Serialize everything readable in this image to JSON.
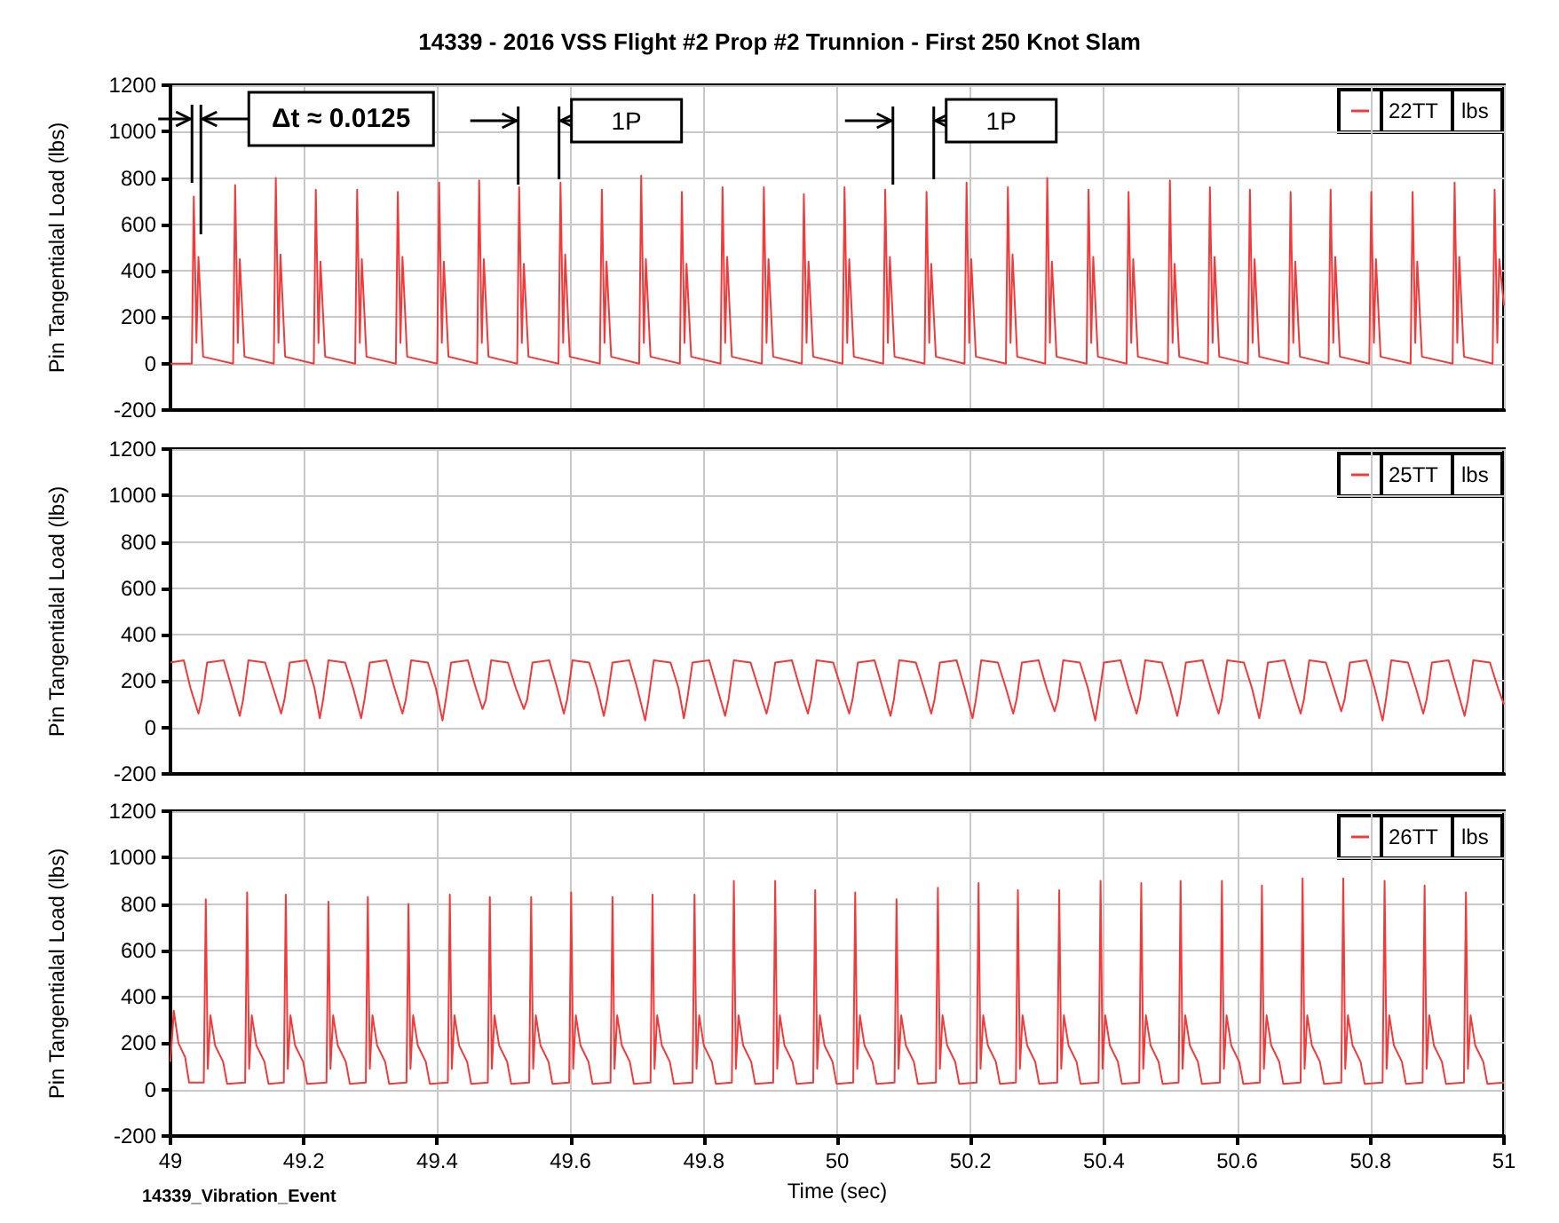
{
  "chart_data": [
    {
      "type": "line",
      "title": "14339 - 2016 VSS Flight #2 Prop #2 Trunnion - First 250 Knot Slam",
      "ylabel": "Pin Tangentialal Load (lbs)",
      "legend_title": "lbs",
      "legend": "top right",
      "grid": true,
      "tick_labels": "y",
      "xlim": [
        49,
        51
      ],
      "xticks": [
        49,
        49.2,
        49.4,
        49.6,
        49.8,
        50,
        50.2,
        50.4,
        50.6,
        50.8,
        51
      ],
      "ylim": [
        -200,
        1200
      ],
      "yticks": [
        -200,
        0,
        200,
        400,
        600,
        800,
        1000,
        1200
      ],
      "annotations": [
        "Δt ≈ 0.0125",
        "1P",
        "1P"
      ],
      "x": [
        49,
        49.032,
        49.035,
        49.039,
        49.042,
        49.049,
        49.094,
        49.097,
        49.101,
        49.104,
        49.111,
        49.155,
        49.158,
        49.162,
        49.165,
        49.172,
        49.215,
        49.218,
        49.222,
        49.225,
        49.232,
        49.277,
        49.28,
        49.284,
        49.287,
        49.294,
        49.338,
        49.341,
        49.345,
        49.348,
        49.355,
        49.4,
        49.403,
        49.407,
        49.41,
        49.417,
        49.46,
        49.463,
        49.467,
        49.47,
        49.477,
        49.52,
        49.523,
        49.527,
        49.53,
        49.537,
        49.582,
        49.585,
        49.589,
        49.592,
        49.599,
        49.644,
        49.647,
        49.651,
        49.654,
        49.661,
        49.703,
        49.706,
        49.71,
        49.713,
        49.72,
        49.764,
        49.767,
        49.771,
        49.774,
        49.781,
        49.825,
        49.828,
        49.832,
        49.835,
        49.842,
        49.887,
        49.89,
        49.894,
        49.897,
        49.904,
        49.947,
        49.95,
        49.954,
        49.957,
        49.964,
        50.008,
        50.011,
        50.015,
        50.018,
        50.025,
        50.069,
        50.072,
        50.076,
        50.079,
        50.086,
        50.131,
        50.134,
        50.138,
        50.141,
        50.148,
        50.191,
        50.194,
        50.198,
        50.201,
        50.208,
        50.253,
        50.256,
        50.26,
        50.263,
        50.27,
        50.312,
        50.315,
        50.319,
        50.322,
        50.329,
        50.374,
        50.377,
        50.381,
        50.384,
        50.391,
        50.434,
        50.437,
        50.441,
        50.444,
        50.451,
        50.496,
        50.499,
        50.503,
        50.506,
        50.513,
        50.556,
        50.559,
        50.563,
        50.566,
        50.573,
        50.616,
        50.619,
        50.623,
        50.626,
        50.633,
        50.677,
        50.68,
        50.684,
        50.687,
        50.694,
        50.737,
        50.74,
        50.744,
        50.747,
        50.754,
        50.798,
        50.801,
        50.805,
        50.808,
        50.815,
        50.86,
        50.863,
        50.867,
        50.87,
        50.877,
        50.923,
        50.926,
        50.93,
        50.933,
        50.94,
        50.983,
        50.986,
        50.99,
        50.993,
        51
      ],
      "series": [
        {
          "name": "22TT",
          "color": "#f23a3a",
          "values": [
            0,
            0,
            720,
            90,
            460,
            30,
            0,
            770,
            90,
            450,
            30,
            0,
            800,
            90,
            470,
            30,
            0,
            750,
            90,
            440,
            30,
            0,
            750,
            90,
            450,
            30,
            0,
            740,
            90,
            460,
            30,
            0,
            780,
            90,
            440,
            30,
            0,
            790,
            90,
            450,
            30,
            0,
            760,
            90,
            430,
            30,
            0,
            780,
            90,
            470,
            30,
            0,
            750,
            90,
            440,
            30,
            0,
            810,
            90,
            450,
            30,
            0,
            740,
            90,
            430,
            30,
            0,
            760,
            90,
            460,
            30,
            0,
            760,
            90,
            450,
            30,
            0,
            730,
            90,
            440,
            30,
            0,
            760,
            90,
            450,
            30,
            0,
            750,
            90,
            460,
            30,
            0,
            740,
            90,
            430,
            30,
            0,
            780,
            90,
            450,
            30,
            0,
            760,
            90,
            470,
            30,
            0,
            800,
            90,
            440,
            30,
            0,
            750,
            90,
            460,
            30,
            0,
            740,
            90,
            450,
            30,
            0,
            790,
            90,
            430,
            30,
            0,
            760,
            90,
            460,
            30,
            0,
            750,
            90,
            450,
            30,
            0,
            740,
            90,
            440,
            30,
            0,
            750,
            90,
            460,
            30,
            0,
            740,
            90,
            450,
            30,
            0,
            740,
            90,
            440,
            30,
            0,
            780,
            90,
            460,
            30,
            0,
            750,
            90,
            450,
            250
          ]
        }
      ]
    },
    {
      "type": "line",
      "ylabel": "Pin Tangentialal Load (lbs)",
      "legend_title": "lbs",
      "legend": "top right",
      "grid": true,
      "tick_labels": "y",
      "xlim": [
        49,
        51
      ],
      "xticks": [
        49,
        49.2,
        49.4,
        49.6,
        49.8,
        50,
        50.2,
        50.4,
        50.6,
        50.8,
        51
      ],
      "ylim": [
        -200,
        1200
      ],
      "yticks": [
        -200,
        0,
        200,
        400,
        600,
        800,
        1000,
        1200
      ],
      "x": [
        49,
        49.02,
        49.03,
        49.042,
        49.047,
        49.055,
        49.08,
        49.092,
        49.104,
        49.109,
        49.117,
        49.142,
        49.154,
        49.166,
        49.171,
        49.179,
        49.204,
        49.216,
        49.224,
        49.229,
        49.237,
        49.262,
        49.274,
        49.286,
        49.291,
        49.299,
        49.324,
        49.336,
        49.348,
        49.353,
        49.361,
        49.386,
        49.398,
        49.408,
        49.413,
        49.421,
        49.446,
        49.458,
        49.468,
        49.473,
        49.481,
        49.506,
        49.518,
        49.53,
        49.535,
        49.543,
        49.568,
        49.58,
        49.59,
        49.595,
        49.603,
        49.628,
        49.64,
        49.65,
        49.655,
        49.663,
        49.688,
        49.7,
        49.712,
        49.717,
        49.725,
        49.75,
        49.762,
        49.77,
        49.775,
        49.783,
        49.808,
        49.82,
        49.832,
        49.837,
        49.845,
        49.87,
        49.882,
        49.894,
        49.899,
        49.907,
        49.932,
        49.944,
        49.956,
        49.961,
        49.969,
        49.994,
        50.006,
        50.018,
        50.023,
        50.031,
        50.056,
        50.068,
        50.08,
        50.085,
        50.093,
        50.118,
        50.13,
        50.141,
        50.146,
        50.154,
        50.179,
        50.191,
        50.203,
        50.208,
        50.216,
        50.241,
        50.253,
        50.264,
        50.269,
        50.277,
        50.302,
        50.314,
        50.326,
        50.331,
        50.339,
        50.364,
        50.376,
        50.387,
        50.392,
        50.4,
        50.425,
        50.437,
        50.449,
        50.454,
        50.462,
        50.487,
        50.499,
        50.51,
        50.515,
        50.523,
        50.548,
        50.56,
        50.572,
        50.577,
        50.585,
        50.61,
        50.622,
        50.633,
        50.638,
        50.646,
        50.671,
        50.683,
        50.695,
        50.7,
        50.708,
        50.733,
        50.745,
        50.756,
        50.761,
        50.769,
        50.794,
        50.806,
        50.818,
        50.823,
        50.831,
        50.856,
        50.868,
        50.879,
        50.884,
        50.892,
        50.917,
        50.929,
        50.941,
        50.946,
        50.954,
        50.979,
        50.991,
        51
      ],
      "series": [
        {
          "name": "25TT",
          "color": "#f23a3a",
          "values": [
            280,
            290,
            170,
            60,
            120,
            280,
            290,
            170,
            50,
            120,
            290,
            280,
            170,
            60,
            120,
            280,
            290,
            170,
            40,
            120,
            290,
            280,
            170,
            40,
            120,
            280,
            290,
            170,
            60,
            120,
            290,
            280,
            170,
            30,
            120,
            280,
            290,
            170,
            80,
            120,
            290,
            280,
            170,
            80,
            120,
            280,
            290,
            170,
            60,
            120,
            290,
            280,
            170,
            50,
            120,
            280,
            290,
            170,
            30,
            120,
            290,
            280,
            170,
            40,
            120,
            280,
            290,
            170,
            50,
            120,
            290,
            280,
            170,
            60,
            120,
            280,
            290,
            170,
            60,
            120,
            290,
            280,
            170,
            60,
            120,
            280,
            290,
            170,
            50,
            120,
            290,
            280,
            170,
            60,
            120,
            280,
            290,
            170,
            40,
            120,
            290,
            280,
            170,
            60,
            120,
            280,
            290,
            170,
            70,
            120,
            290,
            280,
            170,
            30,
            120,
            280,
            290,
            170,
            60,
            120,
            290,
            280,
            170,
            50,
            120,
            280,
            290,
            170,
            60,
            120,
            290,
            280,
            170,
            40,
            120,
            280,
            290,
            170,
            60,
            120,
            290,
            280,
            170,
            70,
            120,
            280,
            290,
            170,
            30,
            120,
            290,
            280,
            170,
            60,
            120,
            280,
            290,
            170,
            50,
            120,
            290,
            280,
            170,
            100
          ]
        }
      ]
    },
    {
      "type": "line",
      "xlabel": "Time (sec)",
      "ylabel": "Pin Tangentialal Load (lbs)",
      "legend_title": "lbs",
      "legend": "top right",
      "grid": true,
      "xlim": [
        49,
        51
      ],
      "xticks": [
        49,
        49.2,
        49.4,
        49.6,
        49.8,
        50,
        50.2,
        50.4,
        50.6,
        50.8,
        51
      ],
      "ylim": [
        -200,
        1200
      ],
      "yticks": [
        -200,
        0,
        200,
        400,
        600,
        800,
        1000,
        1200
      ],
      "annotations": [
        "14339_Vibration_Event"
      ],
      "x": [
        49,
        49.005,
        49.012,
        49.022,
        49.028,
        49.05,
        49.053,
        49.056,
        49.06,
        49.067,
        49.079,
        49.085,
        49.112,
        49.115,
        49.118,
        49.122,
        49.129,
        49.141,
        49.147,
        49.17,
        49.173,
        49.176,
        49.18,
        49.187,
        49.199,
        49.205,
        49.234,
        49.237,
        49.24,
        49.244,
        49.251,
        49.263,
        49.269,
        49.293,
        49.296,
        49.299,
        49.303,
        49.31,
        49.322,
        49.328,
        49.354,
        49.357,
        49.36,
        49.364,
        49.371,
        49.383,
        49.389,
        49.416,
        49.419,
        49.422,
        49.426,
        49.433,
        49.445,
        49.451,
        49.476,
        49.479,
        49.482,
        49.486,
        49.493,
        49.505,
        49.511,
        49.538,
        49.541,
        49.544,
        49.548,
        49.555,
        49.567,
        49.573,
        49.598,
        49.601,
        49.604,
        49.608,
        49.615,
        49.627,
        49.633,
        49.66,
        49.663,
        49.666,
        49.67,
        49.677,
        49.689,
        49.695,
        49.72,
        49.723,
        49.726,
        49.73,
        49.737,
        49.749,
        49.755,
        49.783,
        49.786,
        49.789,
        49.793,
        49.8,
        49.812,
        49.818,
        49.842,
        49.845,
        49.848,
        49.852,
        49.859,
        49.871,
        49.877,
        49.904,
        49.907,
        49.91,
        49.914,
        49.921,
        49.933,
        49.939,
        49.964,
        49.967,
        49.97,
        49.974,
        49.981,
        49.993,
        49.999,
        50.024,
        50.027,
        50.03,
        50.034,
        50.041,
        50.053,
        50.059,
        50.086,
        50.089,
        50.092,
        50.096,
        50.103,
        50.115,
        50.121,
        50.148,
        50.151,
        50.154,
        50.158,
        50.165,
        50.177,
        50.183,
        50.209,
        50.212,
        50.215,
        50.219,
        50.226,
        50.238,
        50.244,
        50.268,
        50.271,
        50.274,
        50.278,
        50.285,
        50.297,
        50.303,
        50.33,
        50.333,
        50.336,
        50.34,
        50.347,
        50.359,
        50.365,
        50.392,
        50.395,
        50.398,
        50.402,
        50.409,
        50.421,
        50.427,
        50.453,
        50.456,
        50.459,
        50.463,
        50.47,
        50.482,
        50.488,
        50.512,
        50.515,
        50.518,
        50.522,
        50.529,
        50.541,
        50.547,
        50.574,
        50.577,
        50.58,
        50.584,
        50.591,
        50.603,
        50.609,
        50.634,
        50.637,
        50.64,
        50.644,
        50.651,
        50.663,
        50.669,
        50.695,
        50.698,
        50.701,
        50.705,
        50.712,
        50.724,
        50.73,
        50.756,
        50.759,
        50.762,
        50.766,
        50.773,
        50.785,
        50.791,
        50.818,
        50.821,
        50.824,
        50.828,
        50.835,
        50.847,
        50.853,
        50.878,
        50.881,
        50.884,
        50.888,
        50.895,
        50.907,
        50.913,
        50.94,
        50.943,
        50.946,
        50.95,
        50.957,
        50.969,
        50.975,
        51
      ],
      "series": [
        {
          "name": "26TT",
          "color": "#f23a3a",
          "values": [
            120,
            340,
            200,
            140,
            30,
            30,
            820,
            90,
            320,
            190,
            120,
            25,
            30,
            850,
            90,
            320,
            190,
            120,
            25,
            30,
            840,
            90,
            320,
            190,
            120,
            25,
            30,
            810,
            90,
            320,
            190,
            120,
            25,
            30,
            830,
            90,
            320,
            190,
            120,
            25,
            30,
            800,
            90,
            320,
            190,
            120,
            25,
            30,
            840,
            90,
            320,
            190,
            120,
            25,
            30,
            830,
            90,
            320,
            190,
            120,
            25,
            30,
            830,
            90,
            320,
            190,
            120,
            25,
            30,
            850,
            90,
            320,
            190,
            120,
            25,
            30,
            830,
            90,
            320,
            190,
            120,
            25,
            30,
            840,
            90,
            320,
            190,
            120,
            25,
            30,
            840,
            90,
            320,
            190,
            120,
            25,
            30,
            900,
            90,
            320,
            190,
            120,
            25,
            30,
            900,
            90,
            320,
            190,
            120,
            25,
            30,
            860,
            90,
            320,
            190,
            120,
            25,
            30,
            850,
            90,
            320,
            190,
            120,
            25,
            30,
            820,
            90,
            320,
            190,
            120,
            25,
            30,
            870,
            90,
            320,
            190,
            120,
            25,
            30,
            890,
            90,
            320,
            190,
            120,
            25,
            30,
            860,
            90,
            320,
            190,
            120,
            25,
            30,
            860,
            90,
            320,
            190,
            120,
            25,
            30,
            900,
            90,
            320,
            190,
            120,
            25,
            30,
            890,
            90,
            320,
            190,
            120,
            25,
            30,
            900,
            90,
            320,
            190,
            120,
            25,
            30,
            900,
            90,
            320,
            190,
            120,
            25,
            30,
            880,
            90,
            320,
            190,
            120,
            25,
            30,
            910,
            90,
            320,
            190,
            120,
            25,
            30,
            910,
            90,
            320,
            190,
            120,
            25,
            30,
            900,
            90,
            320,
            190,
            120,
            25,
            30,
            880,
            90,
            320,
            190,
            120,
            25,
            30,
            850,
            90,
            320,
            190,
            120,
            25,
            30
          ]
        }
      ]
    }
  ]
}
